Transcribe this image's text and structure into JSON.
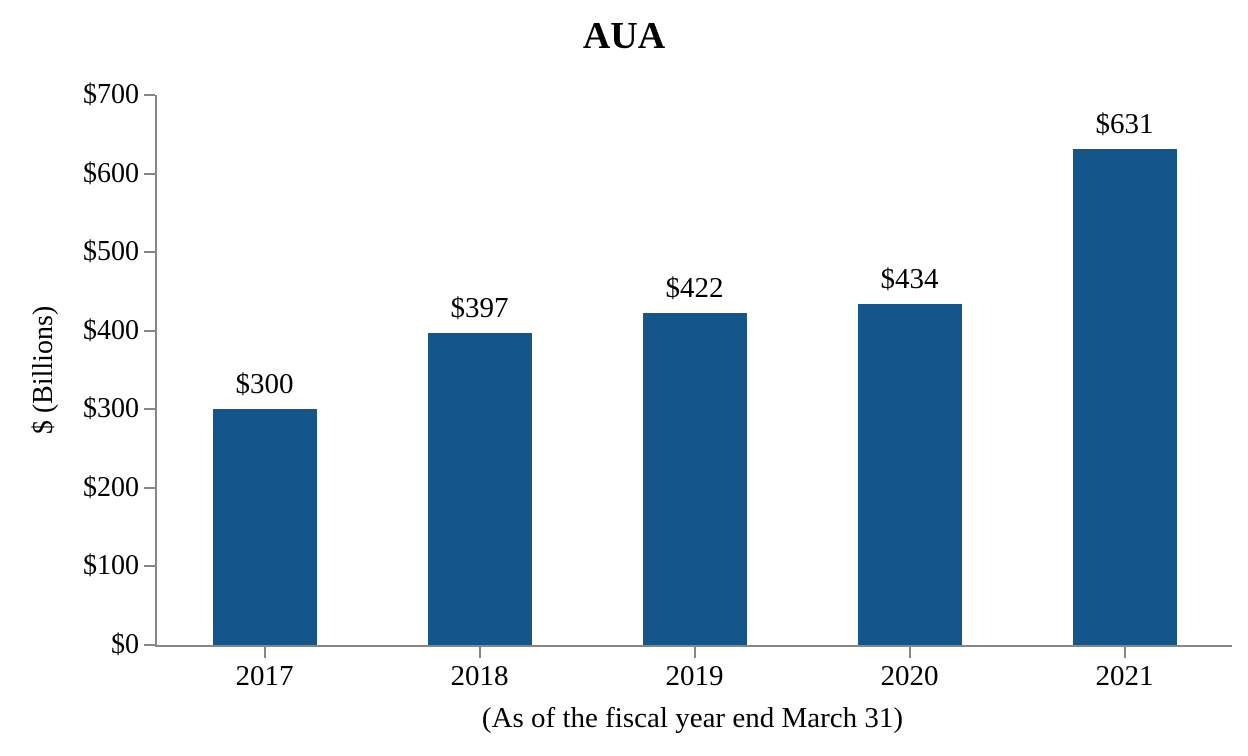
{
  "chart_data": {
    "type": "bar",
    "title": "AUA",
    "ylabel": "$ (Billions)",
    "xlabel": "(As of the fiscal year end March 31)",
    "categories": [
      "2017",
      "2018",
      "2019",
      "2020",
      "2021"
    ],
    "values": [
      300,
      397,
      422,
      434,
      631
    ],
    "value_labels": [
      "$300",
      "$397",
      "$422",
      "$434",
      "$631"
    ],
    "ylim": [
      0,
      700
    ],
    "y_tick_values": [
      0,
      100,
      200,
      300,
      400,
      500,
      600,
      700
    ],
    "y_tick_labels": [
      "$0",
      "$100",
      "$200",
      "$300",
      "$400",
      "$500",
      "$600",
      "$700"
    ],
    "grid": "off",
    "legend": "none",
    "bar_color": "#14568A",
    "axis_color": "#868686",
    "background_color": "#FFFFFF",
    "text_color": "#000000"
  }
}
